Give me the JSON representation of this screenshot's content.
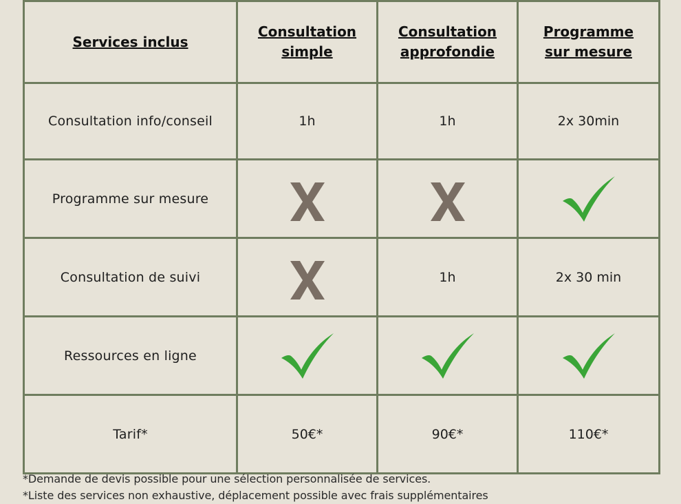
{
  "table": {
    "header": {
      "services_label": "Services inclus",
      "plans": [
        {
          "line1": "Consultation",
          "line2": "simple"
        },
        {
          "line1": "Consultation",
          "line2": "approfondie"
        },
        {
          "line1": "Programme",
          "line2": "sur mesure"
        }
      ]
    },
    "rows": [
      {
        "label": "Consultation info/conseil",
        "values": [
          "1h",
          "1h",
          "2x 30min"
        ]
      },
      {
        "label": "Programme sur mesure",
        "values": [
          "cross-icon",
          "cross-icon",
          "check-icon"
        ]
      },
      {
        "label": "Consultation de suivi",
        "values": [
          "cross-icon",
          "1h",
          "2x 30 min"
        ]
      },
      {
        "label": "Ressources en ligne",
        "values": [
          "check-icon",
          "check-icon",
          "check-icon"
        ]
      },
      {
        "label": "Tarif*",
        "values": [
          "50€*",
          "90€*",
          "110€*"
        ]
      }
    ]
  },
  "colors": {
    "background": "#e7e3d8",
    "header_fill": "#abbb9c",
    "border": "#6f7d5f",
    "cross": "#7a6e64",
    "check": "#3aa537"
  },
  "footnotes": [
    "*Demande de devis possible pour une sélection personnalisée de services.",
    "*Liste des services non exhaustive, déplacement possible avec frais supplémentaires"
  ]
}
